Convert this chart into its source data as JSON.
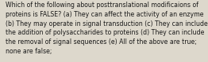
{
  "lines": [
    "Which of the following about posttranslational modificaions of",
    "proteins is FALSE? (a) They can affect the activity of an enzyme",
    "(b) They may operate in signal transduction (c) They can include",
    "the addition of polysaccharides to proteins (d) They can include",
    "the removal of signal sequences (e) All of the above are true;",
    "none are false;"
  ],
  "background_color": "#ddd8cc",
  "text_color": "#1a1a1a",
  "font_size": 5.55,
  "fig_width": 2.62,
  "fig_height": 0.79,
  "dpi": 100
}
